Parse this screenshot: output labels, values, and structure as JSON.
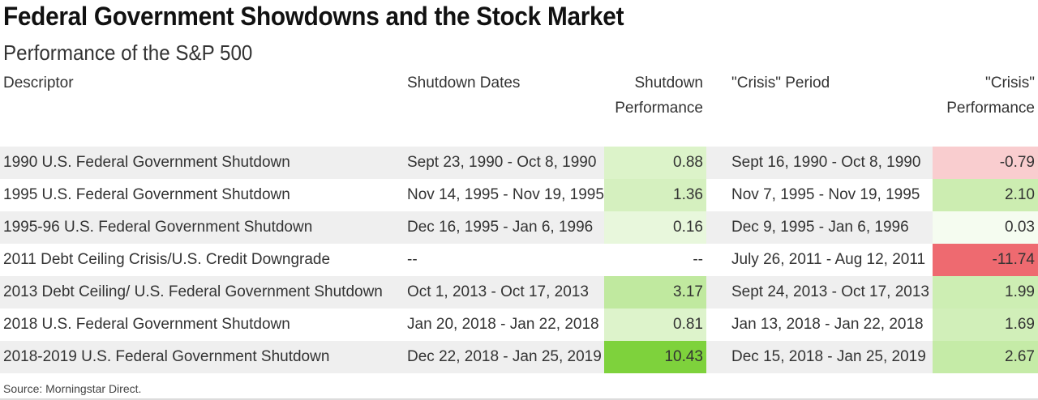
{
  "chart_data": {
    "type": "table",
    "title": "Federal Government Showdowns and the Stock Market",
    "subtitle": "Performance of the S&P 500",
    "columns": [
      {
        "key": "descriptor",
        "lines": [
          "",
          "Descriptor"
        ]
      },
      {
        "key": "shutdown_dates",
        "lines": [
          "",
          "Shutdown Dates"
        ]
      },
      {
        "key": "shutdown_performance",
        "lines": [
          "Shutdown",
          "Performance"
        ]
      },
      {
        "key": "crisis_period",
        "lines": [
          "",
          "\"Crisis\" Period"
        ]
      },
      {
        "key": "crisis_performance",
        "lines": [
          "\"Crisis\"",
          "Performance"
        ]
      }
    ],
    "rows": [
      {
        "descriptor": "1990 U.S. Federal Government Shutdown",
        "shutdown_dates": "Sept 23, 1990 - Oct 8, 1990",
        "shutdown_performance": "0.88",
        "crisis_period": "Sept 16, 1990 - Oct 8, 1990",
        "crisis_performance": "-0.79"
      },
      {
        "descriptor": "1995 U.S. Federal Government Shutdown",
        "shutdown_dates": "Nov 14, 1995 - Nov 19, 1995",
        "shutdown_performance": "1.36",
        "crisis_period": "Nov 7, 1995 - Nov 19, 1995",
        "crisis_performance": "2.10"
      },
      {
        "descriptor": "1995-96 U.S. Federal Government Shutdown",
        "shutdown_dates": "Dec 16, 1995 - Jan 6, 1996",
        "shutdown_performance": "0.16",
        "crisis_period": "Dec 9, 1995 - Jan 6, 1996",
        "crisis_performance": "0.03"
      },
      {
        "descriptor": "2011 Debt Ceiling Crisis/U.S. Credit Downgrade",
        "shutdown_dates": "--",
        "shutdown_performance": "--",
        "crisis_period": "July 26, 2011 - Aug 12, 2011",
        "crisis_performance": "-11.74"
      },
      {
        "descriptor": "2013 Debt Ceiling/ U.S. Federal Government Shutdown",
        "shutdown_dates": "Oct 1, 2013 - Oct 17, 2013",
        "shutdown_performance": "3.17",
        "crisis_period": "Sept 24, 2013 - Oct 17, 2013",
        "crisis_performance": "1.99"
      },
      {
        "descriptor": "2018 U.S. Federal Government Shutdown",
        "shutdown_dates": "Jan 20, 2018 - Jan 22, 2018",
        "shutdown_performance": "0.81",
        "crisis_period": "Jan 13, 2018 - Jan 22, 2018",
        "crisis_performance": "1.69"
      },
      {
        "descriptor": "2018-2019 U.S. Federal Government Shutdown",
        "shutdown_dates": "Dec 22, 2018 - Jan 25, 2019",
        "shutdown_performance": "10.43",
        "crisis_period": "Dec 15, 2018 - Jan 25, 2019",
        "crisis_performance": "2.67"
      }
    ],
    "shaded_rows": [
      0,
      2,
      4,
      6
    ],
    "colors": {
      "positive_max": "#7ed23c",
      "negative_max": "#ee6a70",
      "neutral": "#ffffff",
      "row_shade": "#efefef"
    },
    "source": "Source: Morningstar Direct."
  }
}
